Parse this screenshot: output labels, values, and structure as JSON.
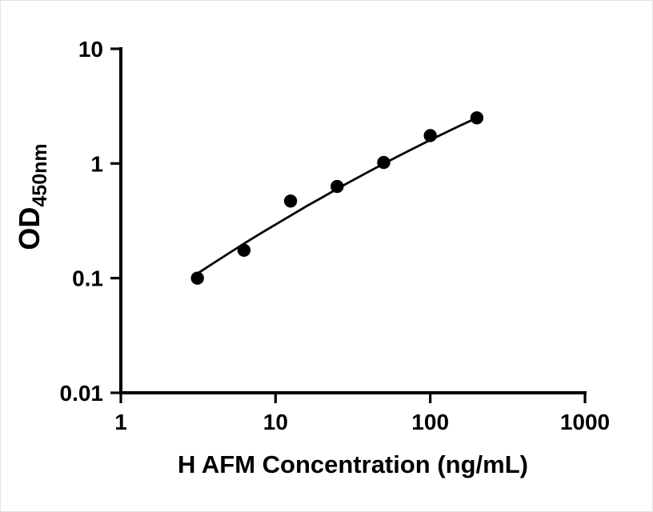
{
  "chart_data": {
    "type": "scatter",
    "title": "",
    "xlabel": "H AFM Concentration (ng/mL)",
    "ylabel_main": "OD",
    "ylabel_sub": "450nm",
    "x_scale": "log",
    "y_scale": "log",
    "xlim": [
      1,
      1000
    ],
    "ylim": [
      0.01,
      10
    ],
    "x_ticks": [
      1,
      10,
      100,
      1000
    ],
    "x_tick_labels": [
      "1",
      "10",
      "100",
      "1000"
    ],
    "y_ticks": [
      0.01,
      0.1,
      1,
      10
    ],
    "y_tick_labels": [
      "0.01",
      "0.1",
      "1",
      "10"
    ],
    "grid": false,
    "legend": null,
    "marker_color": "#000000",
    "line_color": "#000000",
    "points": {
      "x": [
        3.125,
        6.25,
        12.5,
        25,
        50,
        100,
        200
      ],
      "y": [
        0.1,
        0.175,
        0.47,
        0.63,
        1.02,
        1.75,
        2.5
      ]
    },
    "fit_curve": {
      "x": [
        3.2,
        4.0,
        5.0,
        6.3,
        7.9,
        10,
        12.6,
        15.8,
        20,
        25.1,
        31.6,
        39.8,
        50.1,
        63.1,
        79.4,
        100,
        125.9,
        158.5,
        200
      ],
      "y": [
        0.112,
        0.136,
        0.165,
        0.201,
        0.243,
        0.293,
        0.353,
        0.423,
        0.505,
        0.602,
        0.714,
        0.845,
        0.996,
        1.171,
        1.371,
        1.602,
        1.863,
        2.16,
        2.5
      ]
    }
  }
}
